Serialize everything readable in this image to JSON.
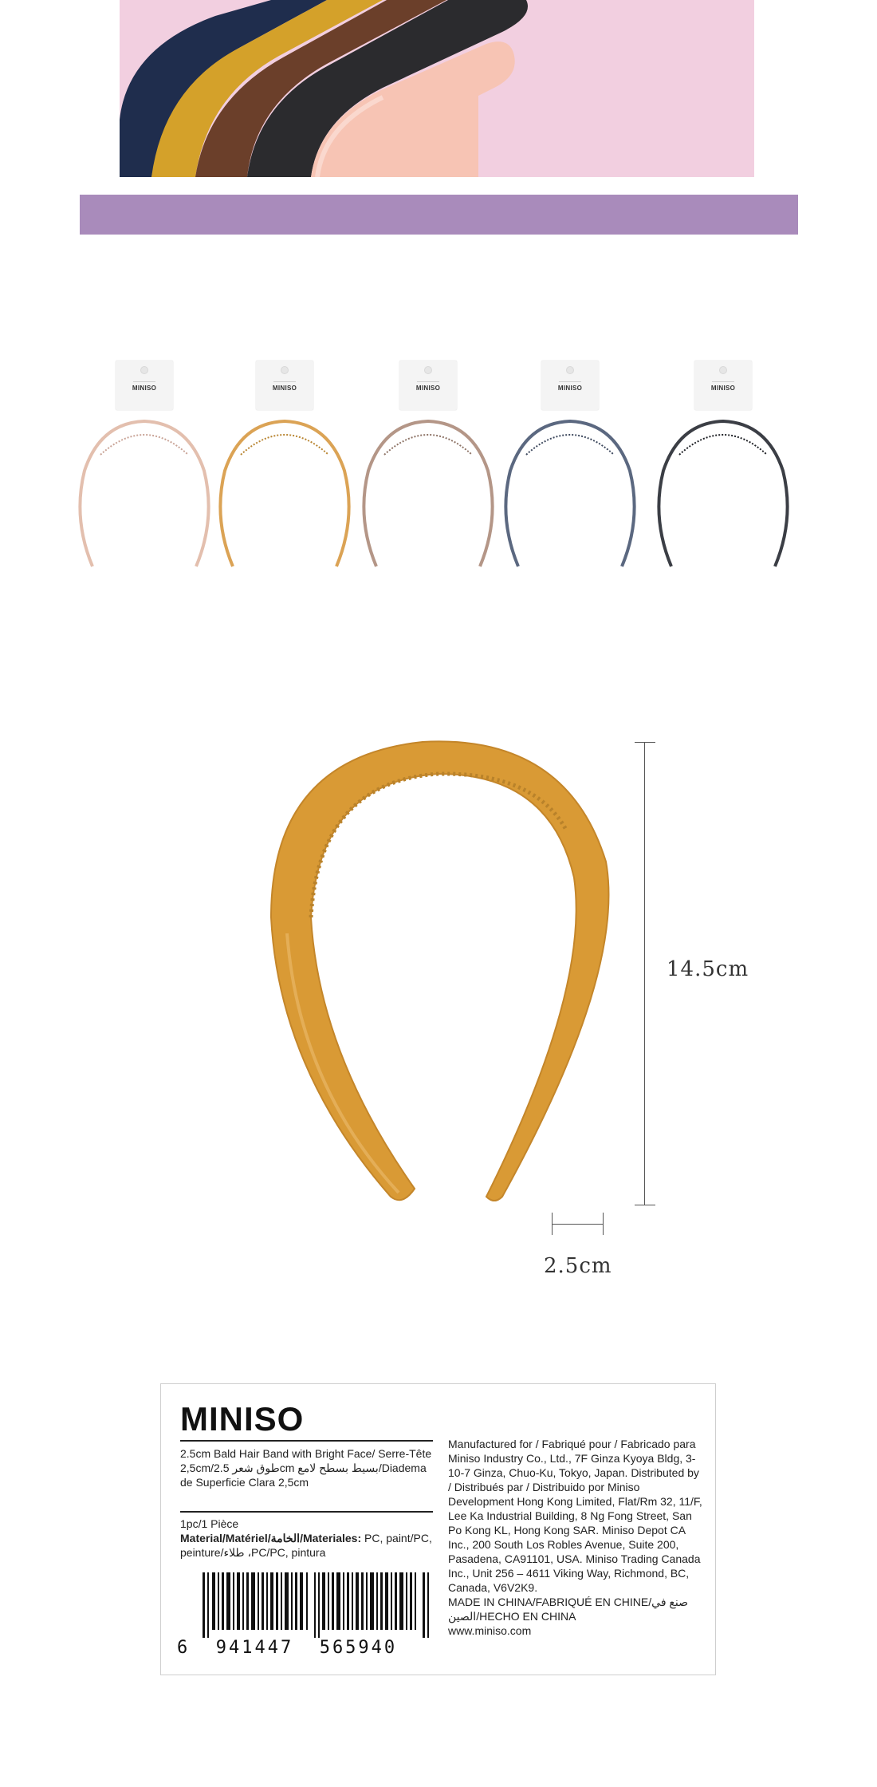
{
  "colors": {
    "pink_bg": "#f2cfe0",
    "purple_band": "#a98bbb",
    "mustard": "#d99a35"
  },
  "variants": [
    {
      "card_text": "MINISO",
      "color": "#e3bfae",
      "name": "pink"
    },
    {
      "card_text": "MINISO",
      "color": "#dba355",
      "name": "mustard"
    },
    {
      "card_text": "MINISO",
      "color": "#b49687",
      "name": "brown"
    },
    {
      "card_text": "MINISO",
      "color": "#5b6880",
      "name": "navy"
    },
    {
      "card_text": "MINISO",
      "color": "#3b3e45",
      "name": "black"
    }
  ],
  "dimensions": {
    "height": "14.5cm",
    "width": "2.5cm"
  },
  "label": {
    "logo": "MINISO",
    "product_name": "2.5cm Bald Hair Band with Bright Face/ Serre-Tête 2,5cm/طوق شعر 2.5cm بسيط بسطح لامع/Diadema de Superficie Clara 2,5cm",
    "quantity": "1pc/1 Pièce",
    "material_heading": "Material/Matériel/الخامة/Materiales:",
    "material_value": " PC, paint/PC, peinture/طلاء ،PC/PC, pintura",
    "barcode_digits": "6  941447  565940",
    "manufacturer": "Manufactured for / Fabriqué pour / Fabricado para Miniso Industry Co., Ltd., 7F Ginza Kyoya Bldg, 3-10-7 Ginza, Chuo-Ku, Tokyo, Japan. Distributed by / Distribués par / Distribuido por Miniso Development Hong Kong Limited, Flat/Rm 32, 11/F, Lee Ka Industrial Building, 8 Ng Fong Street, San Po Kong KL, Hong Kong SAR. Miniso Depot CA Inc., 200 South Los Robles Avenue, Suite 200, Pasadena, CA91101, USA. Miniso Trading Canada Inc., Unit 256 – 4611 Viking Way, Richmond, BC, Canada, V6V2K9.",
    "origin": "MADE IN CHINA/FABRIQUÉ EN CHINE/صنع في الصين/HECHO EN CHINA",
    "website": "www.miniso.com"
  }
}
